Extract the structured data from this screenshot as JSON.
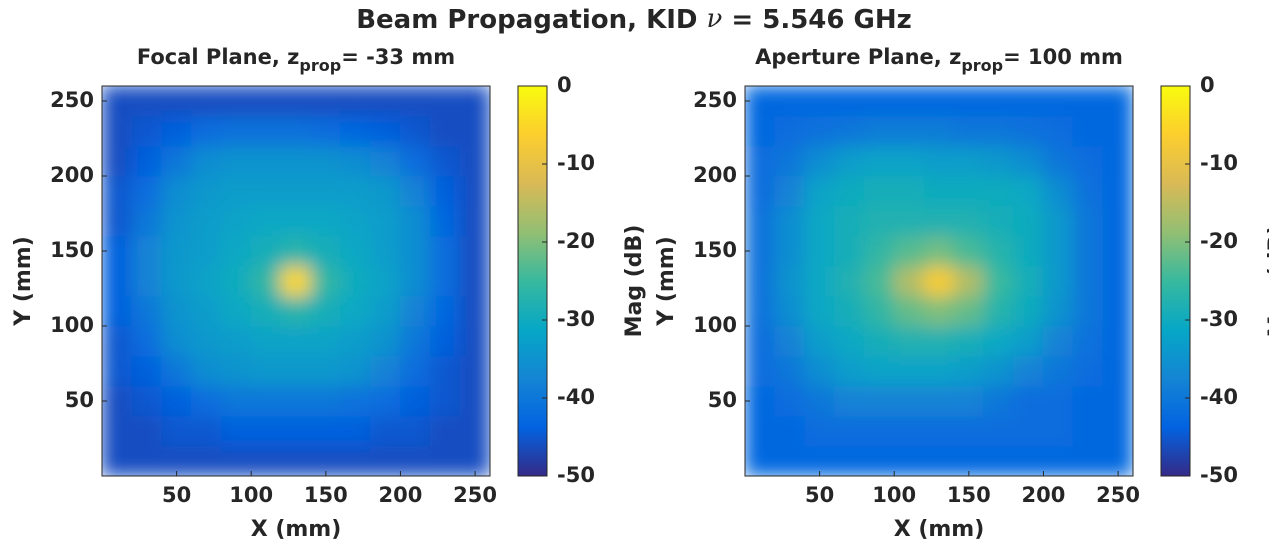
{
  "title": [
    "Beam Propagation, KID ",
    "ν",
    " = 5.546 GHz"
  ],
  "chart_data": [
    {
      "type": "heatmap",
      "title": [
        "Focal Plane, z",
        "prop",
        "= -33 mm"
      ],
      "xlabel": "X (mm)",
      "ylabel": "Y (mm)",
      "colorbar_label": "Mag (dB)",
      "xlim": [
        0,
        260
      ],
      "ylim": [
        0,
        260
      ],
      "xticks": [
        50,
        100,
        150,
        200,
        250
      ],
      "yticks": [
        50,
        100,
        150,
        200,
        250
      ],
      "clim": [
        -50,
        0
      ],
      "cticks": [
        0,
        -10,
        -20,
        -30,
        -40,
        -50
      ],
      "colormap": [
        "#352a87",
        "#0363e1",
        "#1485d4",
        "#06a7c6",
        "#38b99e",
        "#92bf73",
        "#d9ba56",
        "#fcce2e",
        "#f9fb0e"
      ],
      "x": [
        10,
        30,
        50,
        70,
        90,
        110,
        130,
        150,
        170,
        190,
        210,
        230,
        250
      ],
      "y": [
        10,
        30,
        50,
        70,
        90,
        110,
        130,
        150,
        170,
        190,
        210,
        230,
        250
      ],
      "values": [
        [
          -46,
          -46,
          -46,
          -46,
          -46,
          -46,
          -46,
          -46,
          -46,
          -46,
          -46,
          -46,
          -46
        ],
        [
          -46,
          -46,
          -45,
          -45,
          -44,
          -44,
          -44,
          -44,
          -44,
          -45,
          -45,
          -46,
          -46
        ],
        [
          -46,
          -45,
          -44,
          -42,
          -40,
          -40,
          -40,
          -40,
          -41,
          -42,
          -44,
          -45,
          -46
        ],
        [
          -45,
          -44,
          -40,
          -36,
          -35,
          -34,
          -34,
          -34,
          -35,
          -38,
          -42,
          -45,
          -46
        ],
        [
          -45,
          -42,
          -36,
          -34,
          -33,
          -32,
          -32,
          -32,
          -33,
          -35,
          -40,
          -44,
          -46
        ],
        [
          -44,
          -40,
          -35,
          -33,
          -31,
          -29,
          -27,
          -29,
          -31,
          -33,
          -38,
          -43,
          -46
        ],
        [
          -44,
          -38,
          -34,
          -32,
          -30,
          -26,
          -5,
          -26,
          -30,
          -32,
          -36,
          -42,
          -46
        ],
        [
          -44,
          -38,
          -34,
          -33,
          -31,
          -29,
          -27,
          -29,
          -31,
          -33,
          -36,
          -42,
          -46
        ],
        [
          -45,
          -40,
          -35,
          -33,
          -32,
          -31,
          -31,
          -31,
          -32,
          -33,
          -36,
          -43,
          -46
        ],
        [
          -45,
          -42,
          -36,
          -34,
          -33,
          -33,
          -33,
          -33,
          -33,
          -34,
          -38,
          -44,
          -46
        ],
        [
          -46,
          -44,
          -40,
          -36,
          -35,
          -35,
          -35,
          -35,
          -36,
          -38,
          -42,
          -45,
          -46
        ],
        [
          -46,
          -45,
          -44,
          -42,
          -41,
          -41,
          -41,
          -42,
          -43,
          -44,
          -45,
          -46,
          -46
        ],
        [
          -46,
          -46,
          -46,
          -46,
          -46,
          -46,
          -46,
          -46,
          -46,
          -46,
          -46,
          -46,
          -46
        ]
      ]
    },
    {
      "type": "heatmap",
      "title": [
        "Aperture Plane, z",
        "prop",
        "= 100 mm"
      ],
      "xlabel": "X (mm)",
      "ylabel": "Y (mm)",
      "colorbar_label": "Mag (dB)",
      "xlim": [
        0,
        260
      ],
      "ylim": [
        0,
        260
      ],
      "xticks": [
        50,
        100,
        150,
        200,
        250
      ],
      "yticks": [
        50,
        100,
        150,
        200,
        250
      ],
      "clim": [
        -50,
        0
      ],
      "cticks": [
        0,
        -10,
        -20,
        -30,
        -40,
        -50
      ],
      "colormap": [
        "#352a87",
        "#0363e1",
        "#1485d4",
        "#06a7c6",
        "#38b99e",
        "#92bf73",
        "#d9ba56",
        "#fcce2e",
        "#f9fb0e"
      ],
      "x": [
        10,
        30,
        50,
        70,
        90,
        110,
        130,
        150,
        170,
        190,
        210,
        230,
        250
      ],
      "y": [
        10,
        30,
        50,
        70,
        90,
        110,
        130,
        150,
        170,
        190,
        210,
        230,
        250
      ],
      "values": [
        [
          -43,
          -43,
          -43,
          -43,
          -43,
          -43,
          -43,
          -43,
          -43,
          -43,
          -43,
          -43,
          -43
        ],
        [
          -43,
          -43,
          -42,
          -42,
          -42,
          -42,
          -42,
          -42,
          -42,
          -42,
          -42,
          -43,
          -43
        ],
        [
          -43,
          -42,
          -40,
          -38,
          -38,
          -38,
          -38,
          -38,
          -40,
          -42,
          -42,
          -43,
          -43
        ],
        [
          -42,
          -40,
          -36,
          -33,
          -32,
          -32,
          -32,
          -33,
          -35,
          -38,
          -40,
          -42,
          -43
        ],
        [
          -42,
          -38,
          -33,
          -31,
          -29,
          -28,
          -28,
          -29,
          -31,
          -33,
          -38,
          -41,
          -43
        ],
        [
          -41,
          -36,
          -31,
          -29,
          -26,
          -22,
          -20,
          -22,
          -27,
          -30,
          -35,
          -40,
          -43
        ],
        [
          -41,
          -35,
          -31,
          -28,
          -24,
          -16,
          -7,
          -16,
          -25,
          -29,
          -34,
          -40,
          -43
        ],
        [
          -41,
          -36,
          -31,
          -29,
          -26,
          -23,
          -21,
          -24,
          -27,
          -30,
          -34,
          -40,
          -43
        ],
        [
          -41,
          -36,
          -31,
          -29,
          -28,
          -28,
          -28,
          -28,
          -29,
          -30,
          -34,
          -40,
          -43
        ],
        [
          -42,
          -38,
          -32,
          -30,
          -29,
          -29,
          -30,
          -30,
          -30,
          -31,
          -36,
          -41,
          -43
        ],
        [
          -42,
          -40,
          -36,
          -33,
          -32,
          -32,
          -33,
          -33,
          -34,
          -36,
          -40,
          -42,
          -43
        ],
        [
          -43,
          -42,
          -41,
          -40,
          -39,
          -39,
          -39,
          -40,
          -40,
          -41,
          -42,
          -43,
          -43
        ],
        [
          -43,
          -43,
          -43,
          -43,
          -43,
          -43,
          -43,
          -43,
          -43,
          -43,
          -43,
          -43,
          -43
        ]
      ]
    }
  ]
}
